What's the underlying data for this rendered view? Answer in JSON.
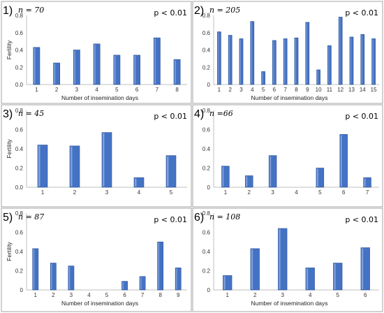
{
  "colors": {
    "bar": "#4472C4",
    "bar_dark": "#2F5597",
    "bar_light": "#7FA1DB",
    "axis": "#BFBFBF",
    "panel_border": "#A6A6A6"
  },
  "chart_data": [
    {
      "type": "bar",
      "panel_label": "1)",
      "n_text": "𝑛 = 70",
      "p_text": "p < 0.01",
      "categories": [
        "1",
        "2",
        "3",
        "4",
        "5",
        "6",
        "7",
        "8"
      ],
      "values": [
        0.43,
        0.25,
        0.4,
        0.47,
        0.34,
        0.34,
        0.54,
        0.29
      ],
      "ylim": [
        0,
        0.8
      ],
      "yticks": [
        "0.0",
        "0.2",
        "0.4",
        "0.6",
        "0.8"
      ],
      "xlabel": "Number of insemination days",
      "ylabel": "Fertility"
    },
    {
      "type": "bar",
      "panel_label": "2)",
      "n_text": "𝑛 = 205",
      "p_text": "p < 0.01",
      "categories": [
        "1",
        "2",
        "3",
        "4",
        "5",
        "6",
        "7",
        "8",
        "9",
        "10",
        "11",
        "12",
        "13",
        "14",
        "15"
      ],
      "values": [
        0.61,
        0.57,
        0.53,
        0.73,
        0.15,
        0.51,
        0.53,
        0.54,
        0.72,
        0.17,
        0.45,
        0.78,
        0.55,
        0.58,
        0.53
      ],
      "ylim": [
        0,
        0.8
      ],
      "yticks": [
        "0",
        "0.2",
        "0.4",
        "0.6",
        "0.8"
      ],
      "xlabel": "Number of insemination days",
      "ylabel": ""
    },
    {
      "type": "bar",
      "panel_label": "3)",
      "n_text": "𝑛 = 45",
      "p_text": "p < 0.01",
      "categories": [
        "1",
        "2",
        "3",
        "4",
        "5"
      ],
      "values": [
        0.44,
        0.43,
        0.57,
        0.1,
        0.33
      ],
      "ylim": [
        0,
        0.8
      ],
      "yticks": [
        "0.0",
        "0.2",
        "0.4",
        "0.6",
        "0.8"
      ],
      "xlabel": "",
      "ylabel": "Fertility"
    },
    {
      "type": "bar",
      "panel_label": "4)",
      "n_text": "𝑛 =66",
      "p_text": "p < 0.01",
      "categories": [
        "1",
        "2",
        "3",
        "4",
        "5",
        "6",
        "7"
      ],
      "values": [
        0.22,
        0.12,
        0.33,
        0.0,
        0.2,
        0.55,
        0.1
      ],
      "ylim": [
        0,
        0.8
      ],
      "yticks": [
        "0",
        "0.2",
        "0.4",
        "0.6",
        "0.8"
      ],
      "xlabel": "",
      "ylabel": ""
    },
    {
      "type": "bar",
      "panel_label": "5)",
      "n_text": "𝑛 = 87",
      "p_text": "p < 0.01",
      "categories": [
        "1",
        "2",
        "3",
        "4",
        "5",
        "6",
        "7",
        "8",
        "9"
      ],
      "values": [
        0.43,
        0.28,
        0.25,
        0.0,
        0.0,
        0.09,
        0.14,
        0.5,
        0.23
      ],
      "ylim": [
        0,
        0.8
      ],
      "yticks": [
        "0",
        "0.2",
        "0.4",
        "0.6",
        "0.8"
      ],
      "xlabel": "Number of insemination days",
      "ylabel": "Fertility"
    },
    {
      "type": "bar",
      "panel_label": "6)",
      "n_text": "𝑛 = 108",
      "p_text": "p < 0.01",
      "categories": [
        "1",
        "2",
        "3",
        "4",
        "5",
        "6"
      ],
      "values": [
        0.15,
        0.43,
        0.64,
        0.23,
        0.28,
        0.44
      ],
      "ylim": [
        0,
        0.8
      ],
      "yticks": [
        "0",
        "0.2",
        "0.4",
        "0.6",
        "0.8"
      ],
      "xlabel": "Number of insemination days",
      "ylabel": ""
    }
  ]
}
